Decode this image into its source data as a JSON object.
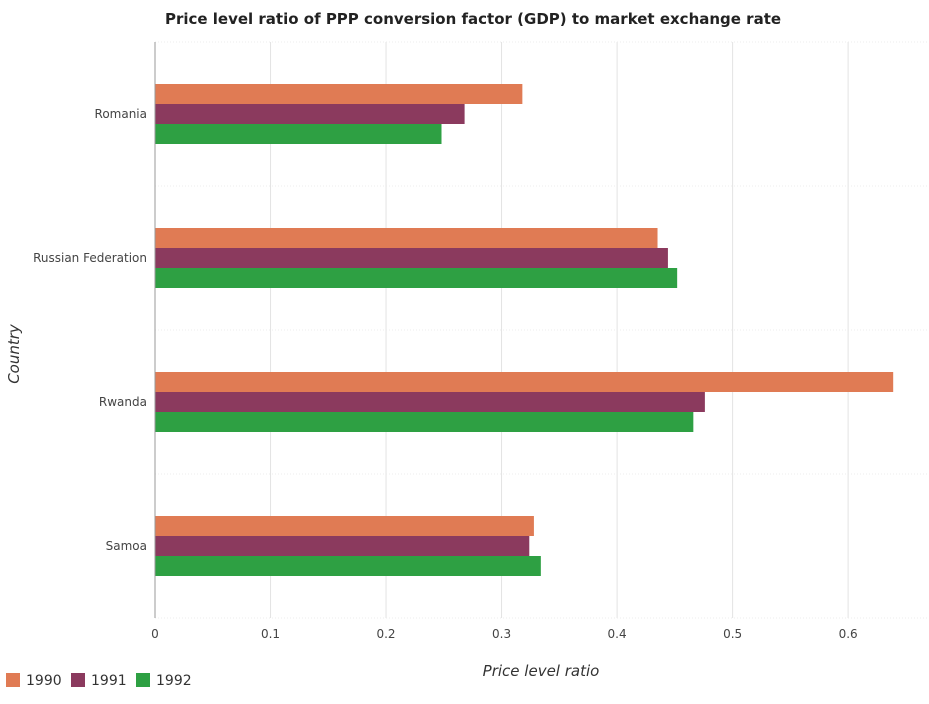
{
  "chart_data": {
    "type": "bar",
    "orientation": "horizontal",
    "title": "Price level ratio of PPP conversion factor (GDP) to market exchange rate",
    "xlabel": "Price level ratio",
    "ylabel": "Country",
    "categories": [
      "Romania",
      "Russian Federation",
      "Rwanda",
      "Samoa"
    ],
    "series": [
      {
        "name": "1990",
        "color": "#e07b54",
        "values": [
          0.318,
          0.435,
          0.639,
          0.328
        ]
      },
      {
        "name": "1991",
        "color": "#8b3a5e",
        "values": [
          0.268,
          0.444,
          0.476,
          0.324
        ]
      },
      {
        "name": "1992",
        "color": "#2ea043",
        "values": [
          0.248,
          0.452,
          0.466,
          0.334
        ]
      }
    ],
    "xlim": [
      0,
      0.67
    ],
    "xticks": [
      0,
      0.1,
      0.2,
      0.3,
      0.4,
      0.5,
      0.6
    ],
    "xtick_labels": [
      "0",
      "0.1",
      "0.2",
      "0.3",
      "0.4",
      "0.5",
      "0.6"
    ],
    "grid": true,
    "legend_position": "bottom-left"
  }
}
